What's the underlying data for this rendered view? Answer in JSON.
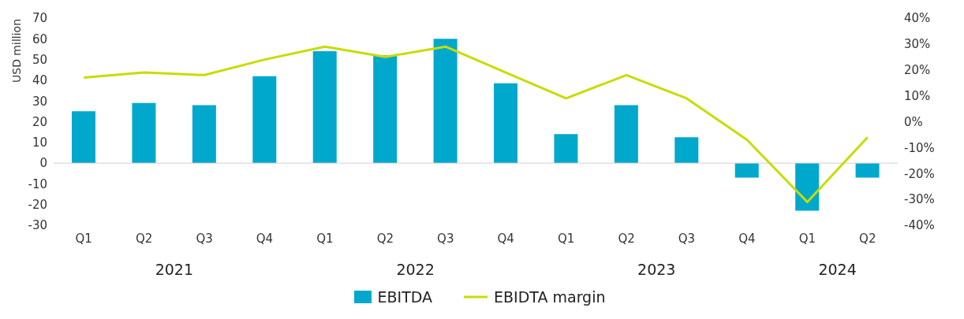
{
  "chart_data": {
    "type": "bar",
    "ylabel": "USD million",
    "categories": [
      "Q1",
      "Q2",
      "Q3",
      "Q4",
      "Q1",
      "Q2",
      "Q3",
      "Q4",
      "Q1",
      "Q2",
      "Q3",
      "Q4",
      "Q1",
      "Q2"
    ],
    "annotations": [
      "2021",
      "2022",
      "2023",
      "2024"
    ],
    "series": [
      {
        "name": "EBITDA",
        "color": "#00a8cc",
        "values": [
          25,
          29,
          28,
          42,
          54,
          52,
          60,
          38.5,
          14,
          28,
          12.5,
          -7,
          -23,
          -7
        ]
      },
      {
        "name": "EBIDTA margin",
        "type": "line",
        "axis": "y2",
        "color": "#c8dc00",
        "values": [
          17,
          19,
          18,
          24,
          29,
          25,
          29,
          19,
          9,
          18,
          9,
          -7,
          -31,
          -6
        ]
      }
    ],
    "ylim": [
      -30,
      70
    ],
    "yticks": [
      -30,
      -20,
      -10,
      0,
      10,
      20,
      30,
      40,
      50,
      60,
      70
    ],
    "y2lim": [
      -40,
      40
    ],
    "y2ticks": [
      {
        "value": -40,
        "label": "-40%"
      },
      {
        "value": -30,
        "label": "-30%"
      },
      {
        "value": -20,
        "label": "-20%"
      },
      {
        "value": -10,
        "label": "-10%"
      },
      {
        "value": 0,
        "label": "0%"
      },
      {
        "value": 10,
        "label": "10%"
      },
      {
        "value": 20,
        "label": "20%"
      },
      {
        "value": 30,
        "label": "30%"
      },
      {
        "value": 40,
        "label": "40%"
      }
    ],
    "legend": "bottom",
    "marker": "none",
    "line_style": "solid"
  }
}
